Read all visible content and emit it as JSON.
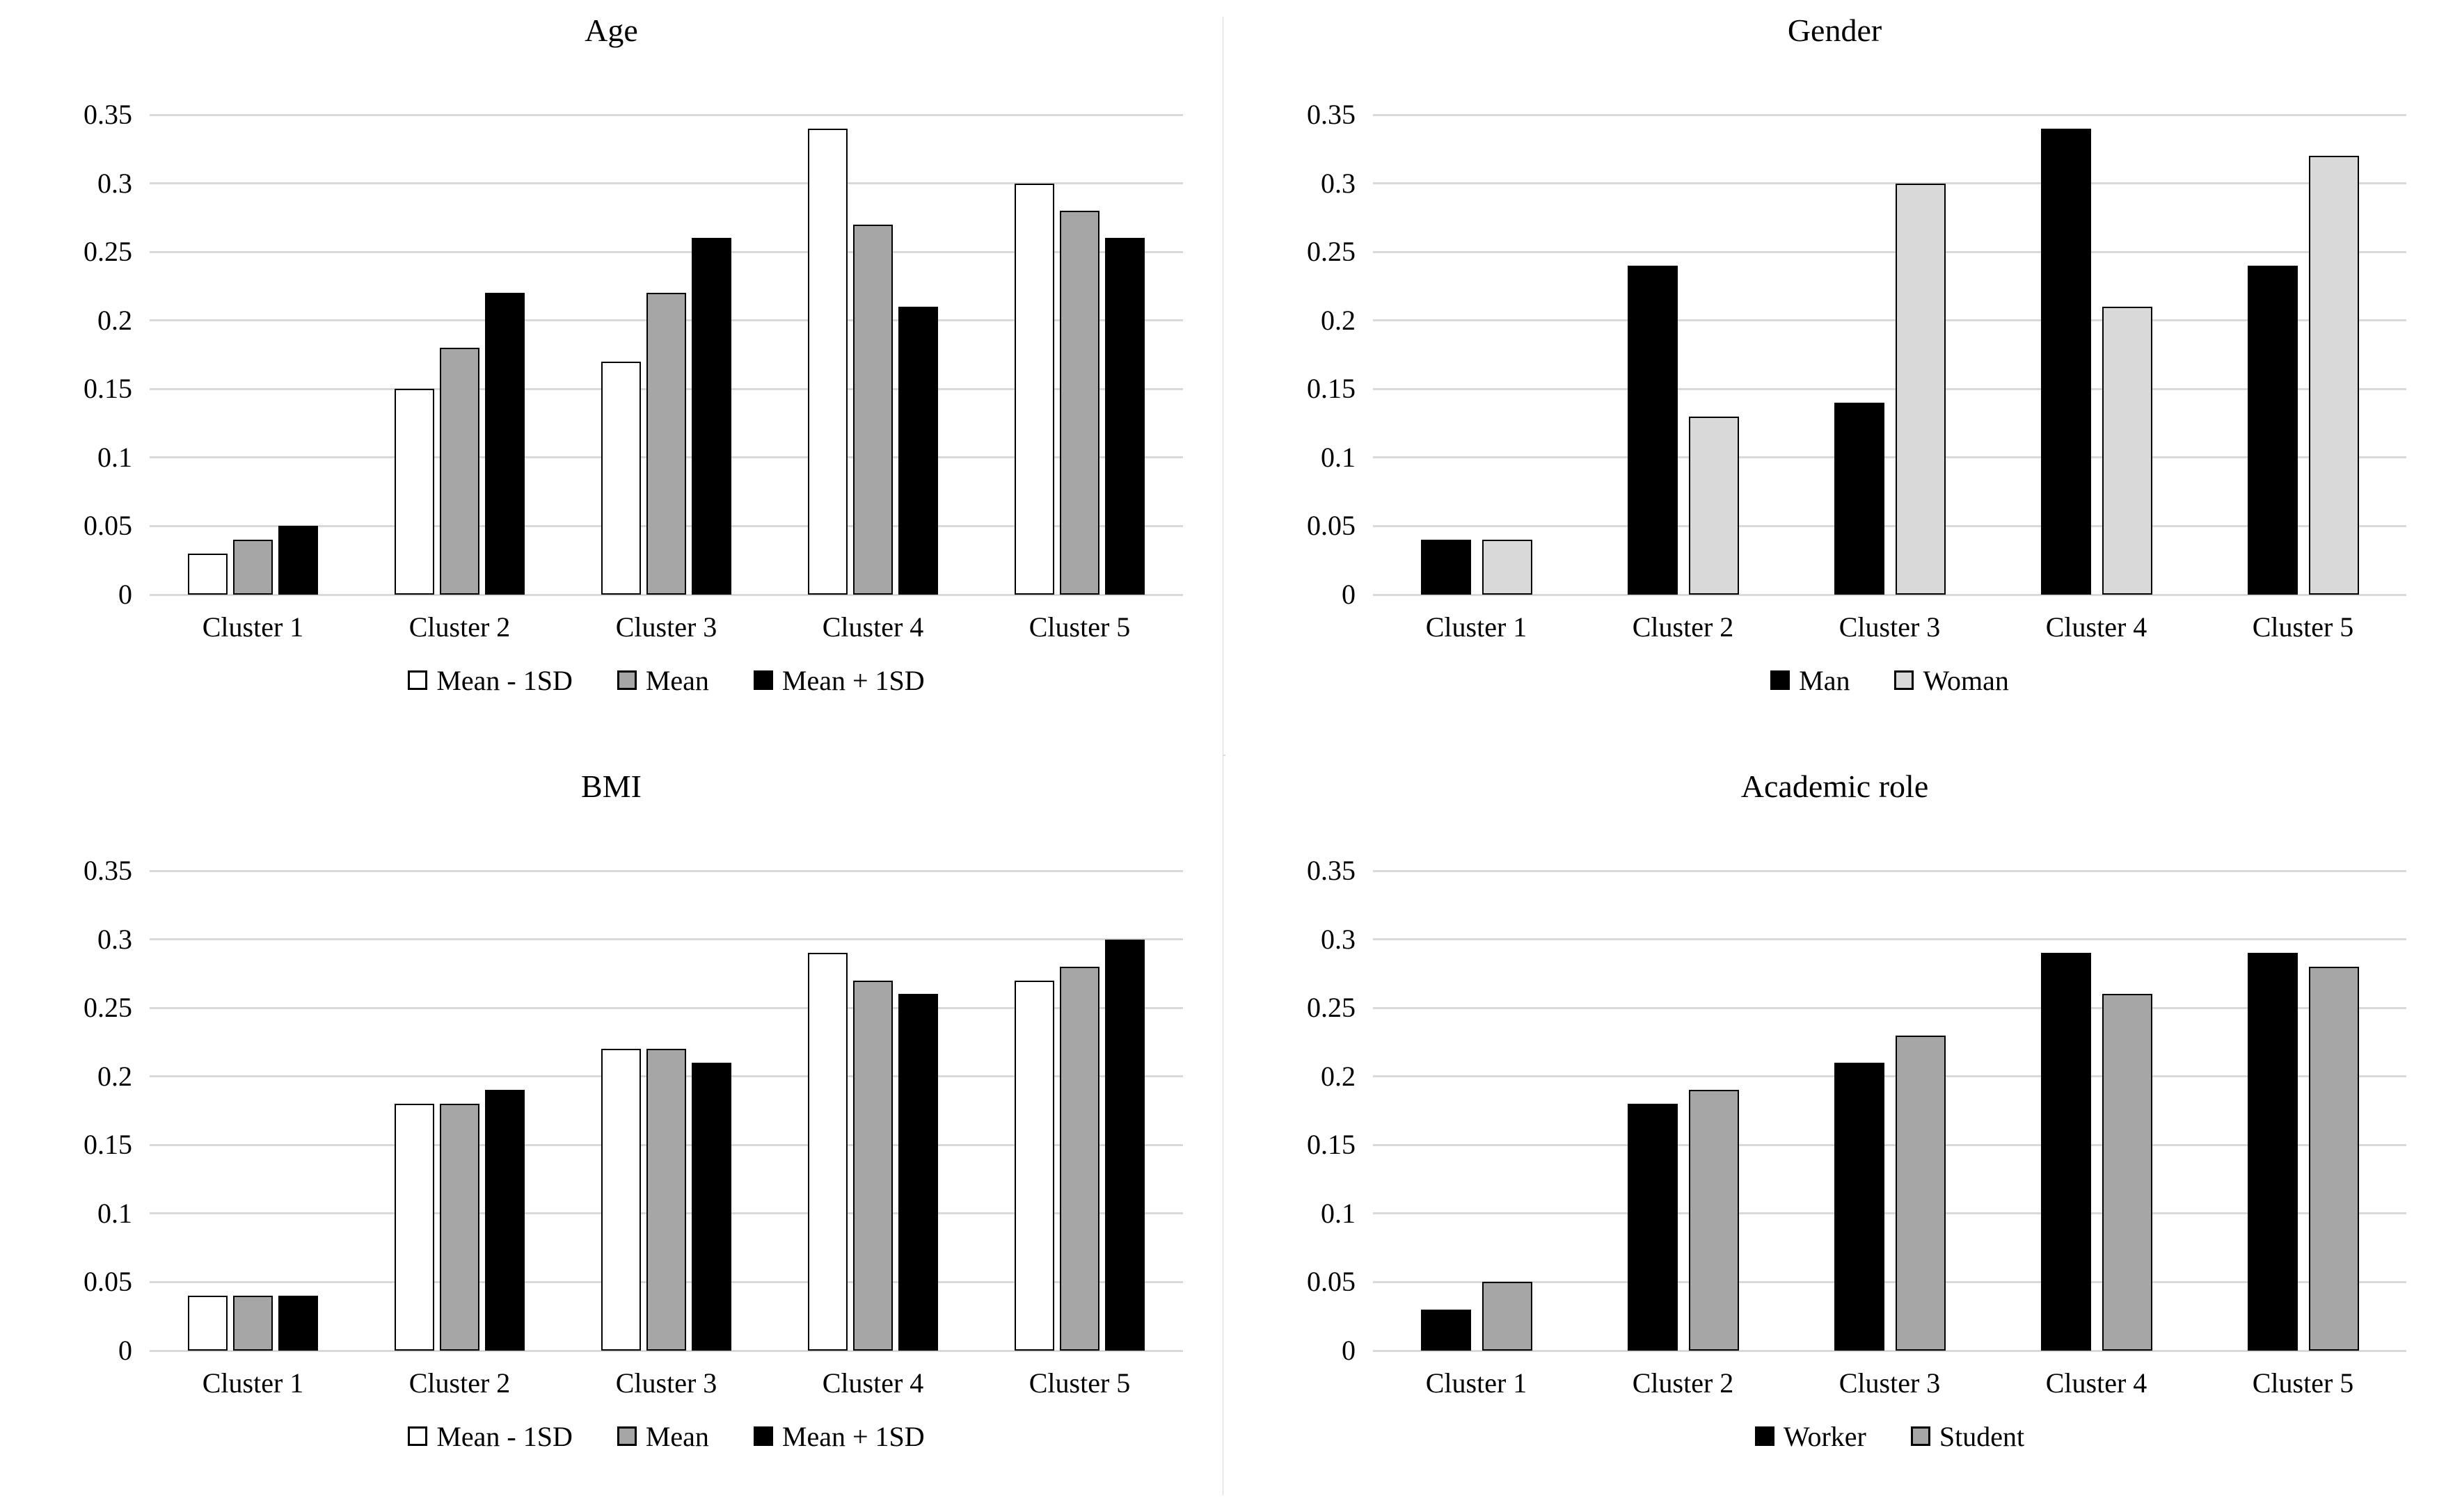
{
  "page": {
    "background": "#ffffff",
    "frame_color": "#d9d9d9",
    "grid_color": "#d9d9d9",
    "text_color": "#000000",
    "bar_border_color": "#000000"
  },
  "axis": {
    "yticks": [
      "0",
      "0.05",
      "0.1",
      "0.15",
      "0.2",
      "0.25",
      "0.3",
      "0.35"
    ],
    "ymax": 0.35
  },
  "chart_data": [
    {
      "type": "bar",
      "title": "Age",
      "xlabel": "",
      "ylabel": "",
      "ylim": [
        0,
        0.35
      ],
      "ytick_labels": [
        "0",
        "0.05",
        "0.1",
        "0.15",
        "0.2",
        "0.25",
        "0.3",
        "0.35"
      ],
      "grid": true,
      "legend_position": "bottom",
      "categories": [
        "Cluster 1",
        "Cluster 2",
        "Cluster 3",
        "Cluster 4",
        "Cluster 5"
      ],
      "series": [
        {
          "name": "Mean - 1SD",
          "fill": "#ffffff",
          "values": [
            0.03,
            0.15,
            0.17,
            0.34,
            0.3
          ]
        },
        {
          "name": "Mean",
          "fill": "#a6a6a6",
          "values": [
            0.04,
            0.18,
            0.22,
            0.27,
            0.28
          ]
        },
        {
          "name": "Mean + 1SD",
          "fill": "#000000",
          "values": [
            0.05,
            0.22,
            0.26,
            0.21,
            0.26
          ]
        }
      ]
    },
    {
      "type": "bar",
      "title": "Gender",
      "xlabel": "",
      "ylabel": "",
      "ylim": [
        0,
        0.35
      ],
      "ytick_labels": [
        "0",
        "0.05",
        "0.1",
        "0.15",
        "0.2",
        "0.25",
        "0.3",
        "0.35"
      ],
      "grid": true,
      "legend_position": "bottom",
      "categories": [
        "Cluster 1",
        "Cluster 2",
        "Cluster 3",
        "Cluster 4",
        "Cluster 5"
      ],
      "series": [
        {
          "name": "Man",
          "fill": "#000000",
          "values": [
            0.04,
            0.24,
            0.14,
            0.34,
            0.24
          ]
        },
        {
          "name": "Woman",
          "fill": "#d9d9d9",
          "values": [
            0.04,
            0.13,
            0.3,
            0.21,
            0.32
          ]
        }
      ]
    },
    {
      "type": "bar",
      "title": "BMI",
      "xlabel": "",
      "ylabel": "",
      "ylim": [
        0,
        0.35
      ],
      "ytick_labels": [
        "0",
        "0.05",
        "0.1",
        "0.15",
        "0.2",
        "0.25",
        "0.3",
        "0.35"
      ],
      "grid": true,
      "legend_position": "bottom",
      "categories": [
        "Cluster 1",
        "Cluster 2",
        "Cluster 3",
        "Cluster 4",
        "Cluster 5"
      ],
      "series": [
        {
          "name": "Mean - 1SD",
          "fill": "#ffffff",
          "values": [
            0.04,
            0.18,
            0.22,
            0.29,
            0.27
          ]
        },
        {
          "name": "Mean",
          "fill": "#a6a6a6",
          "values": [
            0.04,
            0.18,
            0.22,
            0.27,
            0.28
          ]
        },
        {
          "name": "Mean + 1SD",
          "fill": "#000000",
          "values": [
            0.04,
            0.19,
            0.21,
            0.26,
            0.3
          ]
        }
      ]
    },
    {
      "type": "bar",
      "title": "Academic role",
      "xlabel": "",
      "ylabel": "",
      "ylim": [
        0,
        0.35
      ],
      "ytick_labels": [
        "0",
        "0.05",
        "0.1",
        "0.15",
        "0.2",
        "0.25",
        "0.3",
        "0.35"
      ],
      "grid": true,
      "legend_position": "bottom",
      "categories": [
        "Cluster 1",
        "Cluster 2",
        "Cluster 3",
        "Cluster 4",
        "Cluster 5"
      ],
      "series": [
        {
          "name": "Worker",
          "fill": "#000000",
          "values": [
            0.03,
            0.18,
            0.21,
            0.29,
            0.29
          ]
        },
        {
          "name": "Student",
          "fill": "#a6a6a6",
          "values": [
            0.05,
            0.19,
            0.23,
            0.26,
            0.28
          ]
        }
      ]
    }
  ]
}
